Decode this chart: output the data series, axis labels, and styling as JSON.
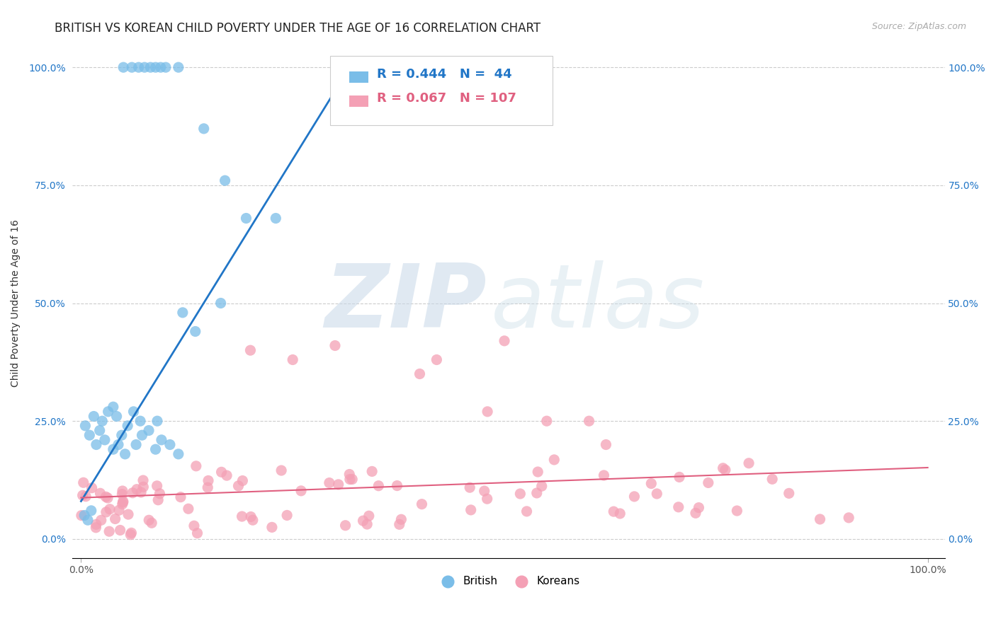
{
  "title": "BRITISH VS KOREAN CHILD POVERTY UNDER THE AGE OF 16 CORRELATION CHART",
  "source": "Source: ZipAtlas.com",
  "ylabel": "Child Poverty Under the Age of 16",
  "xlim": [
    0,
    1
  ],
  "ylim": [
    -0.04,
    1.04
  ],
  "xtick_vals": [
    0.0,
    1.0
  ],
  "xtick_labels": [
    "0.0%",
    "100.0%"
  ],
  "ytick_vals": [
    0.0,
    0.25,
    0.5,
    0.75,
    1.0
  ],
  "ytick_labels": [
    "0.0%",
    "25.0%",
    "50.0%",
    "75.0%",
    "100.0%"
  ],
  "british_color": "#7abde8",
  "korean_color": "#f4a0b5",
  "british_line_color": "#2176c7",
  "korean_line_color": "#e06080",
  "legend_british_R": "0.444",
  "legend_british_N": "44",
  "legend_korean_R": "0.067",
  "legend_korean_N": "107",
  "watermark_zip": "ZIP",
  "watermark_atlas": "atlas",
  "background_color": "#ffffff",
  "title_fontsize": 12,
  "label_fontsize": 10,
  "tick_fontsize": 10,
  "source_fontsize": 9,
  "legend_fontsize": 13
}
